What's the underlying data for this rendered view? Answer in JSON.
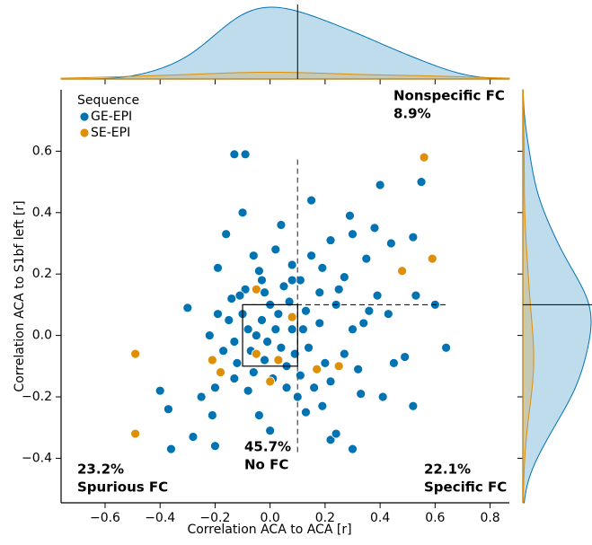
{
  "chart_data": {
    "type": "scatter",
    "xlabel": "Correlation ACA to ACA [r]",
    "ylabel": "Correlation ACA to S1bf left [r]",
    "legend_title": "Sequence",
    "legend": "upper left",
    "xlim": [
      -0.76,
      0.87
    ],
    "ylim": [
      -0.545,
      0.8
    ],
    "xticks": [
      {
        "value": -0.6,
        "label": "−0.6"
      },
      {
        "value": -0.4,
        "label": "−0.4"
      },
      {
        "value": -0.2,
        "label": "−0.2"
      },
      {
        "value": 0,
        "label": "0.0"
      },
      0.2,
      0.4,
      0.6,
      0.8
    ],
    "yticks": [
      {
        "value": -0.4,
        "label": "−0.4"
      },
      {
        "value": -0.2,
        "label": "−0.2"
      },
      {
        "value": 0,
        "label": "0.0"
      },
      0.2,
      0.4,
      0.6
    ],
    "threshold_x": 0.1,
    "threshold_y": 0.1,
    "box": [
      -0.1,
      0.1
    ],
    "annotations": [
      {
        "value": "8.9%",
        "label": "Nonspecific FC"
      },
      {
        "value": "23.2%",
        "label": "Spurious FC"
      },
      {
        "value": "45.7%",
        "label": "No FC"
      },
      {
        "value": "22.1%",
        "label": "Specific FC"
      }
    ],
    "series": [
      {
        "name": "GE-EPI",
        "color": "#0173b2",
        "x": [
          -0.13,
          -0.09,
          0.55,
          0.4,
          0.15,
          0.64,
          -0.4,
          -0.36,
          -0.28,
          -0.2,
          0.3,
          0.52,
          -0.37,
          -0.3,
          0.52,
          0.29,
          0.53,
          0.22,
          0.24,
          0.0,
          0.13,
          0.04,
          -0.19,
          -0.16,
          0.3,
          0.02,
          0.22,
          -0.1,
          0.49,
          0.44,
          0.35,
          -0.25,
          -0.21,
          -0.04,
          0.1,
          0.33,
          0.41,
          0.45,
          -0.2,
          -0.04,
          0.08,
          0.19,
          0.27,
          0.39,
          0.43,
          0.34,
          -0.19,
          -0.14,
          -0.09,
          -0.02,
          0.05,
          0.11,
          0.18,
          0.24,
          0.3,
          0.27,
          0.2,
          0.14,
          0.08,
          0.03,
          -0.03,
          -0.08,
          -0.13,
          -0.17,
          -0.12,
          -0.06,
          0.01,
          0.06,
          0.11,
          0.16,
          0.22,
          -0.01,
          0.04,
          -0.05,
          0.0,
          0.07,
          0.13,
          0.18,
          -0.1,
          -0.07,
          0.02,
          -0.02,
          0.09,
          -0.15,
          0.12,
          -0.11,
          0.06,
          -0.08,
          0.25,
          0.15,
          -0.06,
          0.36,
          0.32,
          -0.22,
          0.6,
          0.38,
          0.08,
          -0.03,
          0.19,
          -0.13
        ],
        "y": [
          0.59,
          0.59,
          0.5,
          0.49,
          0.44,
          -0.04,
          -0.18,
          -0.37,
          -0.33,
          -0.36,
          -0.37,
          -0.23,
          -0.24,
          0.09,
          0.32,
          0.39,
          0.13,
          -0.34,
          -0.32,
          -0.31,
          -0.25,
          0.36,
          0.22,
          0.33,
          0.33,
          0.28,
          0.31,
          0.4,
          -0.07,
          0.3,
          0.25,
          -0.2,
          -0.26,
          -0.26,
          -0.2,
          -0.19,
          -0.2,
          -0.09,
          -0.17,
          0.21,
          0.23,
          0.22,
          0.19,
          0.13,
          0.07,
          0.04,
          0.07,
          0.12,
          0.15,
          0.14,
          0.16,
          0.18,
          0.14,
          0.1,
          0.02,
          -0.06,
          -0.09,
          -0.04,
          0.02,
          0.07,
          0.05,
          0.02,
          -0.02,
          -0.05,
          -0.09,
          -0.12,
          -0.14,
          -0.1,
          -0.13,
          -0.17,
          -0.15,
          -0.02,
          -0.04,
          0.0,
          0.1,
          0.11,
          0.08,
          0.04,
          0.07,
          -0.05,
          0.02,
          -0.08,
          -0.06,
          0.05,
          0.02,
          0.13,
          -0.17,
          -0.18,
          0.15,
          0.26,
          0.26,
          0.08,
          -0.11,
          0.0,
          0.1,
          0.35,
          0.18,
          0.18,
          -0.23,
          -0.14
        ]
      },
      {
        "name": "SE-EPI",
        "color": "#de8f05",
        "x": [
          0.56,
          0.59,
          -0.49,
          -0.49,
          0.48,
          -0.21,
          -0.18,
          -0.05,
          0.0,
          0.17,
          0.25,
          0.08,
          -0.05,
          0.03
        ],
        "y": [
          0.58,
          0.25,
          -0.06,
          -0.32,
          0.21,
          -0.08,
          -0.12,
          0.15,
          -0.15,
          -0.11,
          -0.1,
          0.06,
          -0.06,
          -0.08
        ]
      }
    ]
  }
}
